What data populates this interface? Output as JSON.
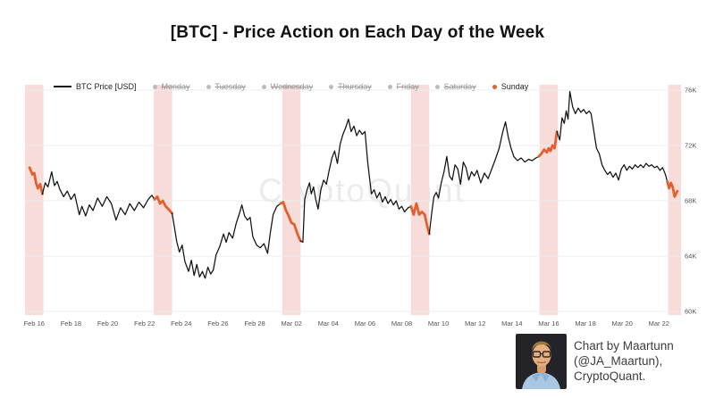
{
  "title": "[BTC] - Price Action on Each Day of the Week",
  "watermark": {
    "text": "CryptoQuant"
  },
  "attribution": {
    "line1": "Chart by Maartunn",
    "line2": "(@JA_Maartun),",
    "line3": "CryptoQuant.",
    "avatar_alt": "maartunn-avatar"
  },
  "colors": {
    "price_line": "#111111",
    "sunday_line": "#e2602f",
    "sunday_band": "#f8dcda",
    "gridline": "#ececec",
    "tick_text": "#555555",
    "legend_muted": "#9a9a9a",
    "legend_muted_dot": "#bbbbbb"
  },
  "legend": {
    "items": [
      {
        "label": "BTC Price [USD]",
        "marker": "line",
        "struck": false
      },
      {
        "label": "Monday",
        "marker": "dot",
        "struck": true
      },
      {
        "label": "Tuesday",
        "marker": "dot",
        "struck": true
      },
      {
        "label": "Wednesday",
        "marker": "dot",
        "struck": true
      },
      {
        "label": "Thursday",
        "marker": "dot",
        "struck": true
      },
      {
        "label": "Friday",
        "marker": "dot",
        "struck": true
      },
      {
        "label": "Saturday",
        "marker": "dot",
        "struck": true
      },
      {
        "label": "Sunday",
        "marker": "dot",
        "struck": false,
        "highlight": true
      }
    ]
  },
  "chart_data": {
    "type": "line",
    "title": "[BTC] - Price Action on Each Day of the Week",
    "series_name": "BTC Price [USD]",
    "x_unit": "days since Feb 16",
    "y_unit": "USD (thousands)",
    "ylim": [
      60,
      76
    ],
    "xlim": [
      -0.5,
      35.2
    ],
    "grid": "horizontal",
    "legend_position": "top-left",
    "y_ticks": [
      {
        "label": "76K",
        "value": 76
      },
      {
        "label": "72K",
        "value": 72
      },
      {
        "label": "68K",
        "value": 68
      },
      {
        "label": "64K",
        "value": 64
      },
      {
        "label": "60K",
        "value": 60
      }
    ],
    "x_ticks": [
      {
        "label": "Feb 16",
        "d": 0
      },
      {
        "label": "Feb 18",
        "d": 2
      },
      {
        "label": "Feb 20",
        "d": 4
      },
      {
        "label": "Feb 22",
        "d": 6
      },
      {
        "label": "Feb 24",
        "d": 8
      },
      {
        "label": "Feb 26",
        "d": 10
      },
      {
        "label": "Feb 28",
        "d": 12
      },
      {
        "label": "Mar 02",
        "d": 14
      },
      {
        "label": "Mar 04",
        "d": 16
      },
      {
        "label": "Mar 06",
        "d": 18
      },
      {
        "label": "Mar 08",
        "d": 20
      },
      {
        "label": "Mar 10",
        "d": 22
      },
      {
        "label": "Mar 12",
        "d": 24
      },
      {
        "label": "Mar 14",
        "d": 26
      },
      {
        "label": "Mar 16",
        "d": 28
      },
      {
        "label": "Mar 18",
        "d": 30
      },
      {
        "label": "Mar 20",
        "d": 32
      },
      {
        "label": "Mar 22",
        "d": 34
      }
    ],
    "sunday_ranges": [
      [
        -0.3,
        0.47
      ],
      [
        6.48,
        7.52
      ],
      [
        13.45,
        14.52
      ],
      [
        20.45,
        21.52
      ],
      [
        27.5,
        28.5
      ],
      [
        34.5,
        35.1
      ]
    ],
    "band_ranges": [
      [
        -0.5,
        0.5
      ],
      [
        6.5,
        7.5
      ],
      [
        13.5,
        14.5
      ],
      [
        20.5,
        21.5
      ],
      [
        27.5,
        28.5
      ],
      [
        34.5,
        35.5
      ]
    ],
    "points": [
      [
        -0.25,
        70.4
      ],
      [
        -0.1,
        69.9
      ],
      [
        0,
        70.0
      ],
      [
        0.1,
        69.3
      ],
      [
        0.2,
        68.9
      ],
      [
        0.32,
        69.2
      ],
      [
        0.45,
        68.5
      ],
      [
        0.6,
        69.3
      ],
      [
        0.75,
        69.0
      ],
      [
        0.95,
        70.1
      ],
      [
        1.1,
        69.1
      ],
      [
        1.25,
        69.4
      ],
      [
        1.4,
        68.8
      ],
      [
        1.6,
        68.3
      ],
      [
        1.8,
        68.7
      ],
      [
        2.0,
        68.1
      ],
      [
        2.2,
        68.5
      ],
      [
        2.45,
        67.0
      ],
      [
        2.6,
        67.6
      ],
      [
        2.8,
        66.9
      ],
      [
        3.0,
        67.7
      ],
      [
        3.2,
        67.3
      ],
      [
        3.45,
        68.2
      ],
      [
        3.7,
        67.6
      ],
      [
        3.95,
        68.3
      ],
      [
        4.2,
        67.8
      ],
      [
        4.45,
        66.6
      ],
      [
        4.7,
        67.5
      ],
      [
        4.95,
        67.0
      ],
      [
        5.2,
        67.8
      ],
      [
        5.45,
        67.3
      ],
      [
        5.7,
        67.9
      ],
      [
        5.95,
        67.5
      ],
      [
        6.2,
        68.1
      ],
      [
        6.4,
        68.4
      ],
      [
        6.55,
        68.1
      ],
      [
        6.7,
        68.3
      ],
      [
        6.85,
        67.8
      ],
      [
        7.0,
        68.0
      ],
      [
        7.15,
        67.6
      ],
      [
        7.3,
        67.4
      ],
      [
        7.5,
        67.1
      ],
      [
        7.62,
        66.2
      ],
      [
        7.75,
        65.1
      ],
      [
        7.9,
        64.3
      ],
      [
        8.05,
        64.8
      ],
      [
        8.2,
        63.6
      ],
      [
        8.4,
        62.9
      ],
      [
        8.55,
        63.7
      ],
      [
        8.7,
        62.6
      ],
      [
        8.85,
        63.4
      ],
      [
        9.0,
        62.5
      ],
      [
        9.15,
        62.9
      ],
      [
        9.3,
        62.4
      ],
      [
        9.45,
        63.2
      ],
      [
        9.6,
        62.7
      ],
      [
        9.75,
        63.0
      ],
      [
        9.9,
        64.1
      ],
      [
        10.1,
        64.7
      ],
      [
        10.3,
        65.6
      ],
      [
        10.45,
        65.0
      ],
      [
        10.6,
        65.7
      ],
      [
        10.8,
        65.3
      ],
      [
        11.0,
        66.4
      ],
      [
        11.15,
        67.0
      ],
      [
        11.3,
        67.7
      ],
      [
        11.45,
        66.9
      ],
      [
        11.6,
        66.6
      ],
      [
        11.75,
        66.8
      ],
      [
        11.9,
        65.4
      ],
      [
        12.1,
        64.8
      ],
      [
        12.3,
        64.6
      ],
      [
        12.5,
        64.9
      ],
      [
        12.7,
        64.2
      ],
      [
        12.85,
        65.7
      ],
      [
        13.0,
        67.0
      ],
      [
        13.2,
        67.6
      ],
      [
        13.4,
        67.8
      ],
      [
        13.55,
        67.9
      ],
      [
        13.7,
        67.3
      ],
      [
        13.85,
        66.9
      ],
      [
        14.0,
        66.4
      ],
      [
        14.15,
        66.3
      ],
      [
        14.3,
        65.7
      ],
      [
        14.42,
        65.3
      ],
      [
        14.5,
        65.1
      ],
      [
        14.62,
        65.0
      ],
      [
        14.72,
        68.1
      ],
      [
        14.85,
        68.8
      ],
      [
        14.98,
        69.3
      ],
      [
        15.08,
        68.5
      ],
      [
        15.2,
        69.0
      ],
      [
        15.32,
        68.1
      ],
      [
        15.45,
        67.4
      ],
      [
        15.6,
        68.8
      ],
      [
        15.75,
        69.5
      ],
      [
        15.9,
        69.2
      ],
      [
        16.05,
        70.2
      ],
      [
        16.2,
        71.1
      ],
      [
        16.35,
        71.6
      ],
      [
        16.5,
        70.7
      ],
      [
        16.65,
        72.1
      ],
      [
        16.8,
        72.8
      ],
      [
        16.95,
        73.3
      ],
      [
        17.1,
        73.9
      ],
      [
        17.25,
        73.0
      ],
      [
        17.4,
        73.4
      ],
      [
        17.55,
        72.7
      ],
      [
        17.7,
        73.1
      ],
      [
        17.85,
        72.8
      ],
      [
        18.0,
        73.0
      ],
      [
        18.15,
        70.8
      ],
      [
        18.35,
        68.5
      ],
      [
        18.5,
        68.8
      ],
      [
        18.65,
        68.2
      ],
      [
        18.8,
        68.6
      ],
      [
        18.95,
        67.9
      ],
      [
        19.1,
        68.3
      ],
      [
        19.25,
        67.8
      ],
      [
        19.4,
        68.1
      ],
      [
        19.55,
        67.7
      ],
      [
        19.7,
        68.0
      ],
      [
        19.85,
        67.4
      ],
      [
        20.0,
        67.6
      ],
      [
        20.15,
        67.2
      ],
      [
        20.35,
        67.5
      ],
      [
        20.5,
        67.6
      ],
      [
        20.65,
        67.0
      ],
      [
        20.8,
        67.8
      ],
      [
        20.95,
        67.0
      ],
      [
        21.1,
        67.2
      ],
      [
        21.25,
        67.0
      ],
      [
        21.38,
        66.2
      ],
      [
        21.5,
        65.6
      ],
      [
        21.62,
        67.0
      ],
      [
        21.75,
        68.3
      ],
      [
        21.88,
        68.6
      ],
      [
        22.0,
        68.2
      ],
      [
        22.15,
        69.3
      ],
      [
        22.3,
        70.1
      ],
      [
        22.45,
        71.2
      ],
      [
        22.6,
        69.8
      ],
      [
        22.75,
        69.5
      ],
      [
        22.9,
        70.6
      ],
      [
        23.05,
        70.3
      ],
      [
        23.2,
        69.2
      ],
      [
        23.35,
        70.8
      ],
      [
        23.5,
        70.4
      ],
      [
        23.65,
        69.5
      ],
      [
        23.8,
        70.1
      ],
      [
        23.95,
        69.8
      ],
      [
        24.1,
        70.2
      ],
      [
        24.3,
        69.3
      ],
      [
        24.5,
        70.0
      ],
      [
        24.7,
        69.6
      ],
      [
        24.9,
        70.3
      ],
      [
        25.1,
        71.0
      ],
      [
        25.3,
        71.8
      ],
      [
        25.5,
        73.0
      ],
      [
        25.65,
        73.7
      ],
      [
        25.8,
        72.6
      ],
      [
        25.95,
        71.8
      ],
      [
        26.1,
        71.2
      ],
      [
        26.3,
        70.9
      ],
      [
        26.5,
        71.1
      ],
      [
        26.7,
        70.8
      ],
      [
        26.9,
        71.0
      ],
      [
        27.1,
        70.9
      ],
      [
        27.3,
        71.1
      ],
      [
        27.45,
        71.2
      ],
      [
        27.6,
        71.4
      ],
      [
        27.75,
        71.7
      ],
      [
        27.9,
        71.5
      ],
      [
        28.0,
        71.8
      ],
      [
        28.1,
        71.6
      ],
      [
        28.2,
        72.0
      ],
      [
        28.32,
        71.8
      ],
      [
        28.45,
        73.0
      ],
      [
        28.6,
        72.4
      ],
      [
        28.72,
        74.0
      ],
      [
        28.85,
        73.6
      ],
      [
        28.95,
        74.5
      ],
      [
        29.05,
        73.9
      ],
      [
        29.15,
        75.9
      ],
      [
        29.3,
        74.8
      ],
      [
        29.45,
        74.3
      ],
      [
        29.6,
        74.7
      ],
      [
        29.75,
        74.4
      ],
      [
        29.9,
        74.6
      ],
      [
        30.05,
        74.3
      ],
      [
        30.2,
        74.5
      ],
      [
        30.3,
        74.3
      ],
      [
        30.45,
        73.1
      ],
      [
        30.6,
        71.8
      ],
      [
        30.75,
        71.4
      ],
      [
        30.9,
        70.6
      ],
      [
        31.05,
        70.2
      ],
      [
        31.2,
        69.9
      ],
      [
        31.35,
        70.1
      ],
      [
        31.5,
        69.7
      ],
      [
        31.65,
        70.0
      ],
      [
        31.8,
        69.5
      ],
      [
        31.95,
        70.3
      ],
      [
        32.1,
        70.6
      ],
      [
        32.25,
        70.2
      ],
      [
        32.4,
        70.5
      ],
      [
        32.55,
        70.3
      ],
      [
        32.7,
        70.6
      ],
      [
        32.85,
        70.4
      ],
      [
        33.0,
        70.6
      ],
      [
        33.15,
        70.4
      ],
      [
        33.3,
        70.7
      ],
      [
        33.45,
        70.5
      ],
      [
        33.6,
        70.6
      ],
      [
        33.75,
        70.4
      ],
      [
        33.9,
        70.5
      ],
      [
        34.05,
        70.2
      ],
      [
        34.2,
        70.4
      ],
      [
        34.35,
        69.9
      ],
      [
        34.45,
        69.4
      ],
      [
        34.55,
        68.9
      ],
      [
        34.65,
        69.3
      ],
      [
        34.75,
        69.0
      ],
      [
        34.85,
        68.3
      ],
      [
        35.0,
        68.7
      ]
    ]
  }
}
